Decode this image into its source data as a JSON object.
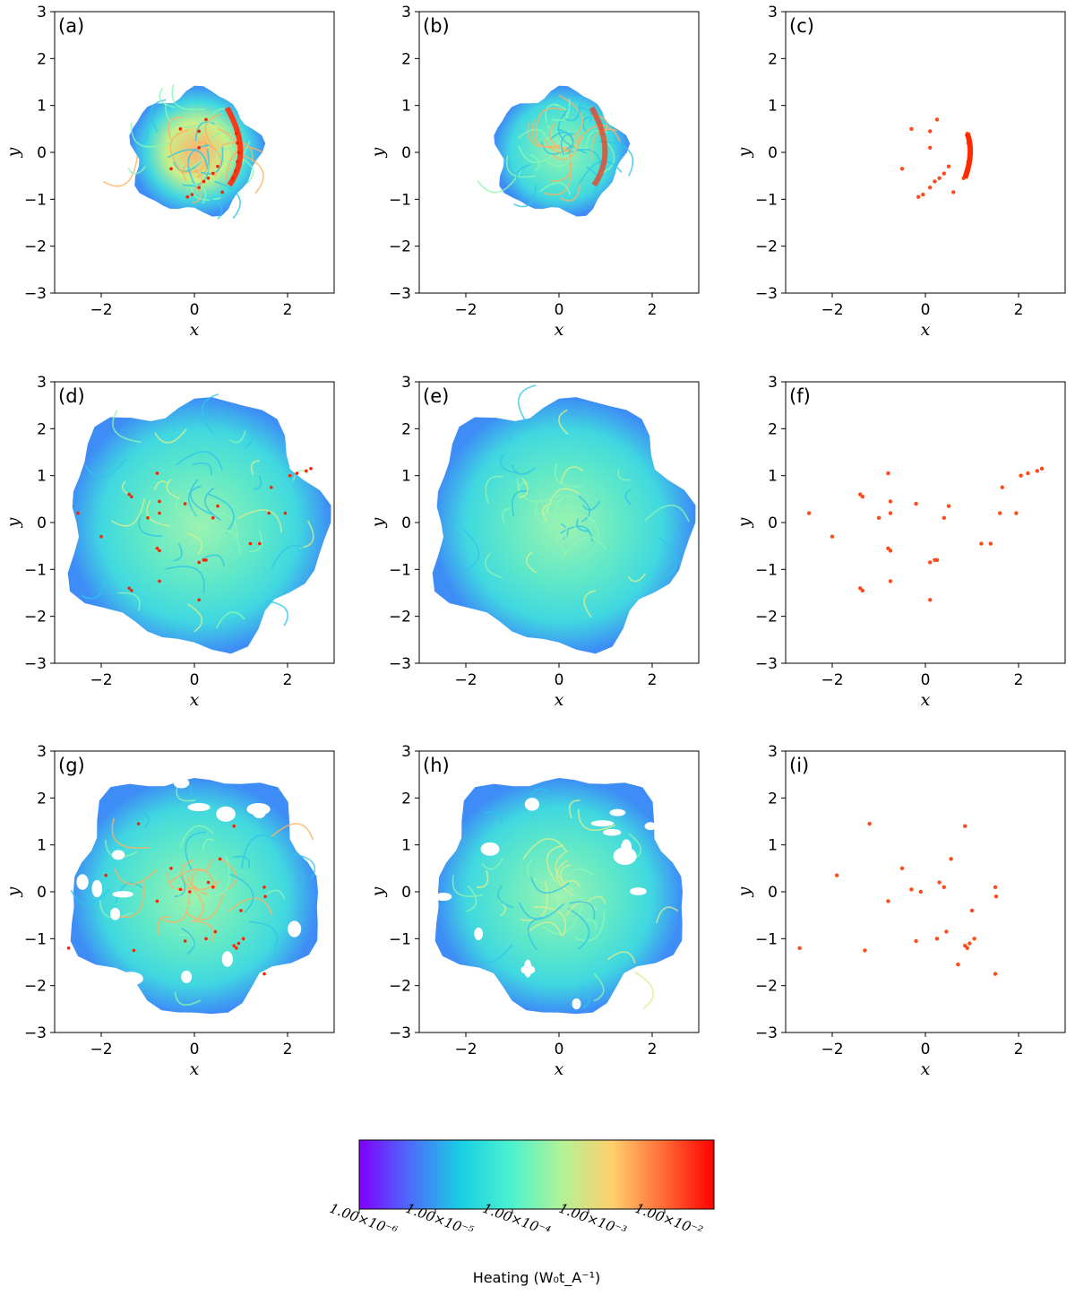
{
  "chart_data": {
    "type": "heatmap",
    "layout": "3x3 grid",
    "xlabel": "x",
    "ylabel": "y",
    "xlim": [
      -3,
      3
    ],
    "ylim": [
      -3,
      3
    ],
    "xticks": [
      -2,
      0,
      2
    ],
    "yticks": [
      -3,
      -2,
      -1,
      0,
      1,
      2,
      3
    ],
    "colormap": "rainbow",
    "panels": [
      {
        "label": "(a)",
        "kind": "field",
        "stage": 1,
        "extent_radius": 1.3,
        "intensity": 0.55
      },
      {
        "label": "(b)",
        "kind": "field",
        "stage": 1,
        "extent_radius": 1.3,
        "intensity": 0.5
      },
      {
        "label": "(c)",
        "kind": "hotspots",
        "stage": 1,
        "extent_radius": 1.3,
        "intensity": 1.0
      },
      {
        "label": "(d)",
        "kind": "field",
        "stage": 2,
        "extent_radius": 2.6,
        "intensity": 0.35
      },
      {
        "label": "(e)",
        "kind": "field",
        "stage": 2,
        "extent_radius": 2.6,
        "intensity": 0.3
      },
      {
        "label": "(f)",
        "kind": "hotspots",
        "stage": 2,
        "extent_radius": 2.6,
        "intensity": 1.0
      },
      {
        "label": "(g)",
        "kind": "field",
        "stage": 3,
        "extent_radius": 2.5,
        "intensity": 0.45
      },
      {
        "label": "(h)",
        "kind": "field",
        "stage": 3,
        "extent_radius": 2.5,
        "intensity": 0.4
      },
      {
        "label": "(i)",
        "kind": "hotspots",
        "stage": 3,
        "extent_radius": 2.5,
        "intensity": 1.0
      }
    ],
    "hotspots": {
      "stage1": [
        [
          0.9,
          0.4
        ],
        [
          0.92,
          0.2
        ],
        [
          0.95,
          0.0
        ],
        [
          0.92,
          -0.2
        ],
        [
          0.88,
          -0.4
        ],
        [
          0.82,
          -0.55
        ],
        [
          0.5,
          -0.3
        ],
        [
          0.4,
          -0.45
        ],
        [
          0.3,
          -0.55
        ],
        [
          0.2,
          -0.62
        ],
        [
          0.1,
          -0.75
        ],
        [
          -0.05,
          -0.9
        ],
        [
          -0.15,
          -0.95
        ],
        [
          0.25,
          0.7
        ],
        [
          0.1,
          0.45
        ],
        [
          -0.3,
          0.5
        ],
        [
          -0.5,
          -0.35
        ],
        [
          0.1,
          0.1
        ],
        [
          0.6,
          -0.85
        ]
      ],
      "stage2": [
        [
          2.5,
          1.15
        ],
        [
          2.4,
          1.1
        ],
        [
          2.2,
          1.05
        ],
        [
          2.05,
          1.0
        ],
        [
          1.65,
          0.75
        ],
        [
          1.6,
          0.2
        ],
        [
          1.95,
          0.2
        ],
        [
          1.4,
          -0.45
        ],
        [
          0.2,
          -0.8
        ],
        [
          0.1,
          -0.85
        ],
        [
          0.25,
          -0.8
        ],
        [
          -1.4,
          -1.4
        ],
        [
          -1.35,
          -1.45
        ],
        [
          -1.4,
          0.6
        ],
        [
          -1.35,
          0.55
        ],
        [
          -0.8,
          -0.55
        ],
        [
          -0.75,
          -0.6
        ],
        [
          -0.2,
          0.4
        ],
        [
          0.4,
          0.1
        ],
        [
          0.5,
          0.35
        ],
        [
          -2.5,
          0.2
        ],
        [
          -2.0,
          -0.3
        ],
        [
          -0.8,
          1.05
        ],
        [
          -0.75,
          0.2
        ],
        [
          -0.75,
          0.45
        ],
        [
          -1.0,
          0.1
        ],
        [
          0.1,
          -1.65
        ],
        [
          -0.75,
          -1.25
        ],
        [
          1.2,
          -0.45
        ]
      ],
      "stage3": [
        [
          -1.2,
          1.45
        ],
        [
          -1.9,
          0.35
        ],
        [
          -2.7,
          -1.2
        ],
        [
          -1.3,
          -1.25
        ],
        [
          -0.3,
          0.05
        ],
        [
          -0.1,
          0.0
        ],
        [
          0.3,
          0.2
        ],
        [
          0.4,
          0.1
        ],
        [
          0.55,
          0.7
        ],
        [
          1.5,
          0.1
        ],
        [
          1.52,
          -0.1
        ],
        [
          0.85,
          -1.15
        ],
        [
          0.95,
          -1.1
        ],
        [
          1.05,
          -1.0
        ],
        [
          0.9,
          -1.2
        ],
        [
          0.45,
          -0.85
        ],
        [
          0.25,
          -1.0
        ],
        [
          0.7,
          -1.55
        ],
        [
          1.5,
          -1.75
        ],
        [
          -0.5,
          0.5
        ],
        [
          1.0,
          -0.4
        ],
        [
          0.85,
          1.4
        ],
        [
          -0.8,
          -0.2
        ],
        [
          -0.2,
          -1.05
        ]
      ]
    },
    "colorbar": {
      "label": "Heating (W₀t_A⁻¹)",
      "ticks": [
        "1.00×10⁻⁶",
        "1.00×10⁻⁵",
        "1.00×10⁻⁴",
        "1.00×10⁻³",
        "1.00×10⁻²"
      ],
      "colors": [
        "#8000ff",
        "#4c6cfa",
        "#1acfe4",
        "#4cf2ce",
        "#b2f296",
        "#ffcf6c",
        "#ff6c36",
        "#ff0000"
      ]
    }
  }
}
